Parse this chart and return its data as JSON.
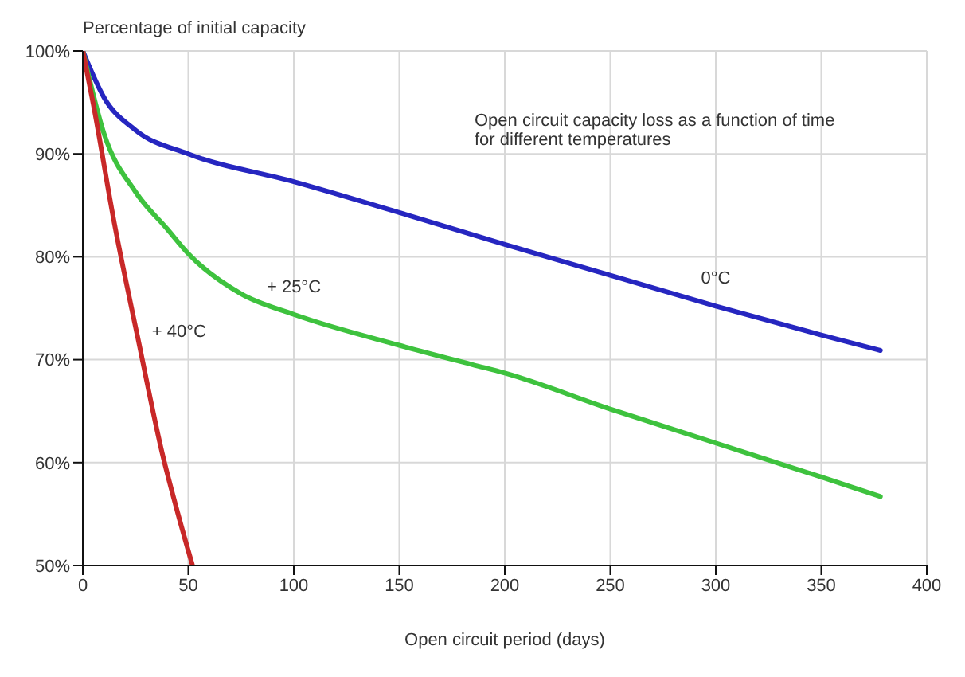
{
  "chart_data": {
    "type": "line",
    "ylabel": "Percentage of initial capacity",
    "xlabel": "Open circuit period (days)",
    "annotations": [
      "Open circuit capacity loss as a function of time for different temperatures"
    ],
    "series": [
      {
        "name": "0°C",
        "color": "#2626c0",
        "x": [
          0,
          10,
          25,
          50,
          100,
          150,
          200,
          250,
          300,
          350,
          378
        ],
        "values": [
          100,
          95.5,
          92.3,
          90,
          87.3,
          84.3,
          81.2,
          78.2,
          75.2,
          72.4,
          70.9
        ]
      },
      {
        "name": "+ 25°C",
        "color": "#3ec23e",
        "x": [
          0,
          10,
          25,
          40,
          50,
          75,
          100,
          150,
          185,
          200,
          250,
          300,
          350,
          378
        ],
        "values": [
          100,
          92,
          86.3,
          82.7,
          80.3,
          76.4,
          74.4,
          71.4,
          69.5,
          68.7,
          65.2,
          61.9,
          58.6,
          56.7
        ]
      },
      {
        "name": "+ 40°C",
        "color": "#c82828",
        "x": [
          0,
          5,
          15,
          26,
          38,
          45,
          52
        ],
        "values": [
          100,
          94.8,
          83.2,
          72.2,
          60.6,
          55.1,
          50
        ]
      }
    ],
    "xlim": [
      0,
      400
    ],
    "xticks": [
      0,
      50,
      100,
      150,
      200,
      250,
      300,
      350,
      400
    ],
    "ylim": [
      50,
      100
    ],
    "yticks": [
      {
        "value": 50,
        "label": "50%"
      },
      {
        "value": 60,
        "label": "60%"
      },
      {
        "value": 70,
        "label": "70%"
      },
      {
        "value": 80,
        "label": "80%"
      },
      {
        "value": 90,
        "label": "90%"
      },
      {
        "value": 100,
        "label": "100%"
      }
    ],
    "grid": true,
    "legend": false,
    "marker": "none",
    "line_style": "solid"
  }
}
